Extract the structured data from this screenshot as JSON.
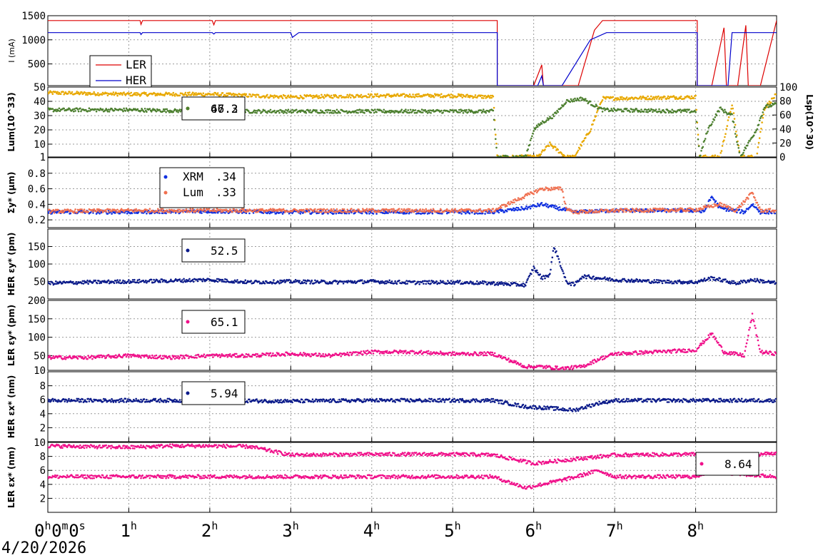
{
  "date": "4/20/2026",
  "x_tick_labels": [
    "0h0m0s",
    "1h",
    "2h",
    "3h",
    "4h",
    "5h",
    "6h",
    "7h",
    "8h"
  ],
  "chart_data": [
    {
      "id": "current",
      "type": "line",
      "ylabel": "I (mA)",
      "yticks": [
        500,
        1000,
        1500
      ],
      "ylim": [
        50,
        1500
      ],
      "legend": "bottom-left",
      "series": [
        {
          "name": "LER",
          "color": "#dd0000",
          "points": [
            [
              0,
              1400
            ],
            [
              1.14,
              1400
            ],
            [
              1.15,
              1320
            ],
            [
              1.17,
              1400
            ],
            [
              2.03,
              1400
            ],
            [
              2.05,
              1310
            ],
            [
              2.07,
              1400
            ],
            [
              5.55,
              1400
            ],
            [
              5.55,
              50
            ],
            [
              6.0,
              50
            ],
            [
              6.1,
              480
            ],
            [
              6.12,
              50
            ],
            [
              6.55,
              50
            ],
            [
              6.75,
              1200
            ],
            [
              6.85,
              1400
            ],
            [
              8.02,
              1400
            ],
            [
              8.02,
              50
            ],
            [
              8.2,
              50
            ],
            [
              8.35,
              1250
            ],
            [
              8.38,
              50
            ],
            [
              8.52,
              50
            ],
            [
              8.62,
              1300
            ],
            [
              8.65,
              50
            ],
            [
              8.8,
              50
            ],
            [
              9.0,
              1400
            ]
          ]
        },
        {
          "name": "HER",
          "color": "#0000cc",
          "points": [
            [
              0,
              1150
            ],
            [
              1.14,
              1150
            ],
            [
              1.15,
              1110
            ],
            [
              1.17,
              1150
            ],
            [
              2.03,
              1150
            ],
            [
              2.05,
              1120
            ],
            [
              2.07,
              1150
            ],
            [
              3.0,
              1150
            ],
            [
              3.02,
              1050
            ],
            [
              3.1,
              1150
            ],
            [
              5.55,
              1150
            ],
            [
              5.55,
              50
            ],
            [
              6.05,
              50
            ],
            [
              6.1,
              250
            ],
            [
              6.12,
              50
            ],
            [
              6.35,
              50
            ],
            [
              6.7,
              1000
            ],
            [
              6.9,
              1150
            ],
            [
              8.02,
              1150
            ],
            [
              8.02,
              50
            ],
            [
              8.4,
              50
            ],
            [
              8.45,
              1150
            ],
            [
              9.0,
              1150
            ]
          ]
        }
      ]
    },
    {
      "id": "luminosity",
      "type": "scatter",
      "ylabel": "Lum(10^33)",
      "yticks": [
        1,
        10,
        20,
        30,
        40,
        50
      ],
      "ylim": [
        1,
        50
      ],
      "y2label": "Lsp(10^30)",
      "y2ticks": [
        0,
        20,
        40,
        60,
        80,
        100
      ],
      "y2lim": [
        0,
        100
      ],
      "legend": "top-left",
      "series": [
        {
          "name": "",
          "color": "#e8a800",
          "legend_value": "66.3",
          "points": [
            [
              0,
              46
            ],
            [
              1,
              45
            ],
            [
              2,
              45
            ],
            [
              3,
              43
            ],
            [
              4,
              44
            ],
            [
              5,
              44
            ],
            [
              5.5,
              43
            ],
            [
              5.55,
              1
            ],
            [
              6.05,
              1
            ],
            [
              6.2,
              10
            ],
            [
              6.4,
              1
            ],
            [
              6.5,
              1
            ],
            [
              6.7,
              20
            ],
            [
              6.85,
              42
            ],
            [
              8.0,
              43
            ],
            [
              8.05,
              1
            ],
            [
              8.3,
              1
            ],
            [
              8.45,
              38
            ],
            [
              8.55,
              1
            ],
            [
              8.75,
              1
            ],
            [
              8.85,
              35
            ],
            [
              9.0,
              45
            ]
          ]
        },
        {
          "name": "",
          "color": "#4c7f2f",
          "legend_value": "47.2",
          "points": [
            [
              0,
              34
            ],
            [
              1,
              34
            ],
            [
              2,
              33
            ],
            [
              3,
              33
            ],
            [
              4,
              33
            ],
            [
              5,
              33
            ],
            [
              5.5,
              33
            ],
            [
              5.55,
              1
            ],
            [
              5.9,
              1
            ],
            [
              6.0,
              20
            ],
            [
              6.1,
              25
            ],
            [
              6.25,
              30
            ],
            [
              6.4,
              40
            ],
            [
              6.6,
              42
            ],
            [
              6.85,
              34
            ],
            [
              8.0,
              33
            ],
            [
              8.05,
              1
            ],
            [
              8.15,
              20
            ],
            [
              8.3,
              35
            ],
            [
              8.45,
              30
            ],
            [
              8.55,
              1
            ],
            [
              8.75,
              20
            ],
            [
              8.85,
              36
            ],
            [
              9.0,
              38
            ]
          ]
        }
      ]
    },
    {
      "id": "sigma_y",
      "type": "scatter",
      "ylabel": "Σy* (μm)",
      "yticks": [
        0.2,
        0.4,
        0.6,
        0.8
      ],
      "ylim": [
        0.1,
        1.0
      ],
      "legend": "top-left",
      "series": [
        {
          "name": "XRM",
          "color": "#1030e0",
          "legend_value": ".34",
          "points": [
            [
              0,
              0.3
            ],
            [
              1,
              0.3
            ],
            [
              2,
              0.31
            ],
            [
              3,
              0.3
            ],
            [
              4,
              0.3
            ],
            [
              5,
              0.3
            ],
            [
              5.5,
              0.3
            ],
            [
              5.9,
              0.35
            ],
            [
              6.1,
              0.4
            ],
            [
              6.3,
              0.35
            ],
            [
              6.5,
              0.3
            ],
            [
              7,
              0.32
            ],
            [
              8,
              0.32
            ],
            [
              8.1,
              0.3
            ],
            [
              8.2,
              0.5
            ],
            [
              8.3,
              0.35
            ],
            [
              8.6,
              0.3
            ],
            [
              8.7,
              0.4
            ],
            [
              8.8,
              0.3
            ],
            [
              9,
              0.3
            ]
          ]
        },
        {
          "name": "Lum",
          "color": "#f07050",
          "legend_value": ".33",
          "points": [
            [
              0,
              0.31
            ],
            [
              1,
              0.32
            ],
            [
              2,
              0.32
            ],
            [
              3,
              0.32
            ],
            [
              4,
              0.32
            ],
            [
              5,
              0.32
            ],
            [
              5.5,
              0.32
            ],
            [
              6.1,
              0.6
            ],
            [
              6.35,
              0.6
            ],
            [
              6.4,
              0.35
            ],
            [
              6.5,
              0.3
            ],
            [
              7,
              0.32
            ],
            [
              8,
              0.33
            ],
            [
              8.3,
              0.4
            ],
            [
              8.5,
              0.32
            ],
            [
              8.7,
              0.55
            ],
            [
              8.8,
              0.32
            ],
            [
              9,
              0.32
            ]
          ]
        }
      ]
    },
    {
      "id": "her_emit_y",
      "type": "scatter",
      "ylabel": "HER εy* (pm)",
      "yticks": [
        50,
        100,
        150
      ],
      "ylim": [
        0,
        200
      ],
      "legend": "top-left",
      "series": [
        {
          "name": "",
          "color": "#0a1a8a",
          "legend_value": "52.5",
          "points": [
            [
              0,
              45
            ],
            [
              0.5,
              48
            ],
            [
              1,
              50
            ],
            [
              1.5,
              52
            ],
            [
              2,
              55
            ],
            [
              2.5,
              48
            ],
            [
              3,
              50
            ],
            [
              3.5,
              48
            ],
            [
              4,
              50
            ],
            [
              4.5,
              47
            ],
            [
              5,
              48
            ],
            [
              5.5,
              45
            ],
            [
              5.9,
              40
            ],
            [
              6.0,
              90
            ],
            [
              6.1,
              60
            ],
            [
              6.2,
              70
            ],
            [
              6.25,
              150
            ],
            [
              6.3,
              120
            ],
            [
              6.4,
              50
            ],
            [
              6.5,
              40
            ],
            [
              6.6,
              65
            ],
            [
              7,
              55
            ],
            [
              7.5,
              50
            ],
            [
              8,
              48
            ],
            [
              8.2,
              60
            ],
            [
              8.5,
              45
            ],
            [
              8.7,
              55
            ],
            [
              9,
              45
            ]
          ]
        }
      ]
    },
    {
      "id": "ler_emit_y",
      "type": "scatter",
      "ylabel": "LER εy* (pm)",
      "yticks": [
        10,
        50,
        100,
        150,
        200
      ],
      "ylim": [
        10,
        200
      ],
      "legend": "top-left",
      "series": [
        {
          "name": "",
          "color": "#f0108a",
          "legend_value": "65.1",
          "points": [
            [
              0,
              45
            ],
            [
              0.5,
              45
            ],
            [
              1,
              50
            ],
            [
              1.5,
              45
            ],
            [
              2,
              50
            ],
            [
              2.5,
              50
            ],
            [
              3,
              55
            ],
            [
              3.5,
              50
            ],
            [
              4,
              60
            ],
            [
              4.5,
              60
            ],
            [
              5,
              55
            ],
            [
              5.5,
              55
            ],
            [
              5.9,
              20
            ],
            [
              6.1,
              20
            ],
            [
              6.35,
              15
            ],
            [
              6.6,
              20
            ],
            [
              6.8,
              40
            ],
            [
              7,
              55
            ],
            [
              7.5,
              60
            ],
            [
              8,
              65
            ],
            [
              8.2,
              110
            ],
            [
              8.35,
              60
            ],
            [
              8.6,
              50
            ],
            [
              8.7,
              160
            ],
            [
              8.8,
              60
            ],
            [
              9,
              55
            ]
          ]
        }
      ]
    },
    {
      "id": "her_emit_x",
      "type": "scatter",
      "ylabel": "HER εx* (nm)",
      "yticks": [
        2,
        4,
        6,
        8
      ],
      "ylim": [
        0,
        10
      ],
      "legend": "top-left",
      "series": [
        {
          "name": "",
          "color": "#0a1a8a",
          "legend_value": "5.94",
          "points": [
            [
              0,
              5.9
            ],
            [
              1,
              5.9
            ],
            [
              2,
              5.9
            ],
            [
              3,
              5.8
            ],
            [
              4,
              5.9
            ],
            [
              5,
              5.9
            ],
            [
              5.5,
              5.9
            ],
            [
              5.9,
              5.0
            ],
            [
              6.2,
              4.8
            ],
            [
              6.5,
              4.5
            ],
            [
              6.8,
              5.5
            ],
            [
              7,
              5.9
            ],
            [
              8,
              5.9
            ],
            [
              9,
              5.9
            ]
          ]
        }
      ]
    },
    {
      "id": "ler_emit_x",
      "type": "scatter",
      "ylabel": "LER εx* (nm)",
      "yticks": [
        2,
        4,
        6,
        8,
        10
      ],
      "ylim": [
        0,
        10
      ],
      "legend": "top-right",
      "series": [
        {
          "name": "",
          "color": "#f0108a",
          "legend_value": "8.64",
          "points": [
            [
              0,
              5.1
            ],
            [
              1,
              5.1
            ],
            [
              2,
              5.1
            ],
            [
              3,
              5.1
            ],
            [
              4,
              5.1
            ],
            [
              5,
              5.1
            ],
            [
              5.5,
              5.1
            ],
            [
              5.9,
              3.5
            ],
            [
              6.1,
              4.0
            ],
            [
              6.3,
              4.5
            ],
            [
              6.5,
              5.0
            ],
            [
              6.8,
              6.0
            ],
            [
              7,
              5.1
            ],
            [
              8,
              5.1
            ],
            [
              8.2,
              6.0
            ],
            [
              8.5,
              5.5
            ],
            [
              9,
              5.1
            ]
          ]
        },
        {
          "name": "",
          "color": "#f0108a",
          "legend_value": "",
          "points": [
            [
              0,
              9.5
            ],
            [
              1,
              9.3
            ],
            [
              1.5,
              9.5
            ],
            [
              2,
              9.5
            ],
            [
              2.5,
              9.4
            ],
            [
              3,
              8.2
            ],
            [
              4,
              8.3
            ],
            [
              5,
              8.3
            ],
            [
              5.5,
              8.2
            ],
            [
              6.0,
              7.0
            ],
            [
              7,
              8.2
            ],
            [
              8,
              8.3
            ],
            [
              8.5,
              8.0
            ],
            [
              9,
              8.5
            ]
          ]
        }
      ]
    }
  ]
}
